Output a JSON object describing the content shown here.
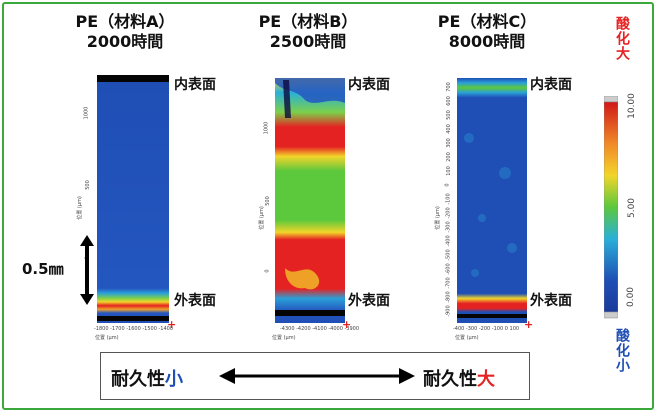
{
  "panels": [
    {
      "title_line1": "PE（材料A）",
      "title_line2": "2000時間",
      "y_ticks": [
        "1000",
        "500",
        "0"
      ],
      "x_ticks": "-1800 -1700 -1600 -1500 -1400",
      "axis_x_label": "位置 (μm)",
      "axis_y_label": "位置 (μm)"
    },
    {
      "title_line1": "PE（材料B）",
      "title_line2": "2500時間",
      "y_ticks": [
        "1000",
        "500",
        "0"
      ],
      "x_ticks": "-4300 -4200 -4100 -4000 -3900",
      "axis_x_label": "位置 (μm)",
      "axis_y_label": "位置 (μm)"
    },
    {
      "title_line1": "PE（材料C）",
      "title_line2": "8000時間",
      "y_ticks": [
        "700",
        "600",
        "500",
        "400",
        "300",
        "200",
        "100",
        "0",
        "-100",
        "-200",
        "-300",
        "-400",
        "-500",
        "-600",
        "-700",
        "-800",
        "-900"
      ],
      "x_ticks": "-400 -300 -200 -100 0 100",
      "axis_x_label": "位置 (μm)",
      "axis_y_label": "位置 (μm)"
    }
  ],
  "labels": {
    "inner_surface": "内表面",
    "outer_surface": "外表面",
    "scale": "0.5㎜"
  },
  "colorbar": {
    "top_label": "酸化大",
    "bottom_label": "酸化小",
    "ticks": [
      "10.00",
      "5.00",
      "0.00"
    ],
    "color_high": "#e52222",
    "color_low": "#1f4fb5"
  },
  "durability": {
    "prefix": "耐久性",
    "low": "小",
    "high": "大",
    "color_low": "#1f4fb5",
    "color_high": "#e52222"
  },
  "colors": {
    "frame": "#3aa83a",
    "oxidation_low": "#1f4fb5",
    "oxidation_mid": "#5cc83c",
    "oxidation_high": "#e52222"
  }
}
